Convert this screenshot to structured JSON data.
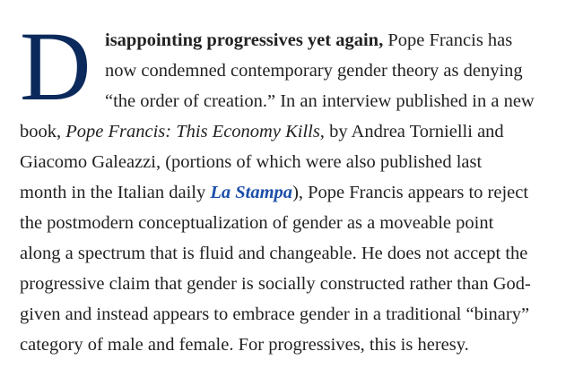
{
  "article": {
    "dropcap": "D",
    "lines": [
      [
        {
          "t": "b",
          "text": "isappointing progressives yet again,"
        },
        {
          "t": "n",
          "text": " Pope Francis has"
        }
      ],
      [
        {
          "t": "n",
          "text": "now condemned contemporary gender theory as denying"
        }
      ],
      [
        {
          "t": "n",
          "text": "“the order of creation.” In an interview published in a new"
        }
      ],
      [
        {
          "t": "n",
          "text": "book, "
        },
        {
          "t": "i",
          "text": "Pope Francis: This Economy Kills,"
        },
        {
          "t": "n",
          "text": " by Andrea Tornielli and"
        }
      ],
      [
        {
          "t": "n",
          "text": "Giacomo Galeazzi, (portions of which were also published last"
        }
      ],
      [
        {
          "t": "n",
          "text": "month in the Italian daily "
        },
        {
          "t": "a",
          "text": "La Stampa"
        },
        {
          "t": "n",
          "text": "), Pope Francis appears to reject"
        }
      ],
      [
        {
          "t": "n",
          "text": "the postmodern conceptualization of gender as a moveable point"
        }
      ],
      [
        {
          "t": "n",
          "text": "along a spectrum that is fluid and changeable. He does not accept the"
        }
      ],
      [
        {
          "t": "n",
          "text": "progressive claim that gender is socially constructed rather than God-"
        }
      ],
      [
        {
          "t": "n",
          "text": "given and instead appears to embrace gender in a traditional “binary”"
        }
      ],
      [
        {
          "t": "n",
          "text": "category of male and female. For progressives, this is heresy."
        }
      ]
    ]
  },
  "colors": {
    "dropcap": "#0b2a5b",
    "link": "#1d4fa8",
    "text": "#222222"
  }
}
